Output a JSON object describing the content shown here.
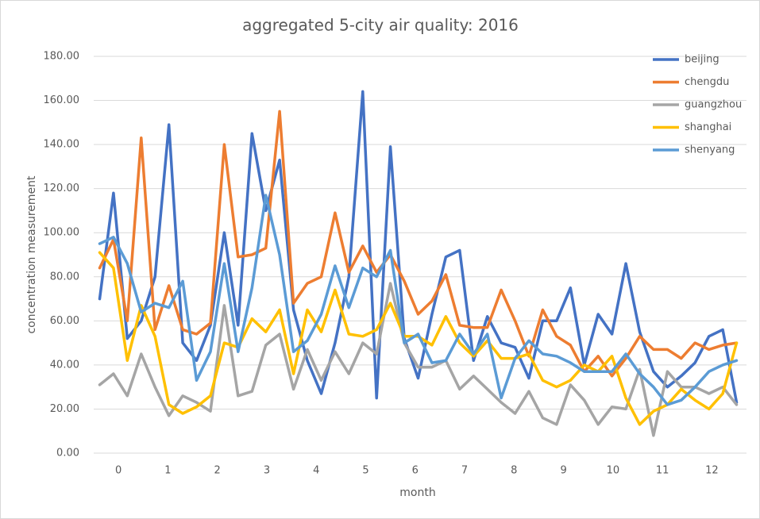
{
  "chart_data": {
    "type": "line",
    "title": "aggregated 5-city air quality: 2016",
    "xlabel": "month",
    "ylabel": "concentration measurement",
    "x": [
      -0.38,
      -0.1,
      0.18,
      0.46,
      0.74,
      1.02,
      1.3,
      1.58,
      1.86,
      2.14,
      2.42,
      2.7,
      2.98,
      3.26,
      3.54,
      3.82,
      4.1,
      4.38,
      4.66,
      4.94,
      5.22,
      5.5,
      5.78,
      6.06,
      6.34,
      6.62,
      6.9,
      7.18,
      7.46,
      7.74,
      8.02,
      8.3,
      8.58,
      8.86,
      9.14,
      9.42,
      9.7,
      9.98,
      10.26,
      10.54,
      10.82,
      11.1,
      11.38,
      11.66,
      11.94,
      12.22,
      12.5
    ],
    "series": [
      {
        "name": "beijing",
        "color": "#4472c4",
        "values": [
          70,
          118,
          52,
          60,
          80,
          149,
          50,
          42,
          58,
          100,
          58,
          145,
          110,
          133,
          65,
          42,
          27,
          50,
          80,
          164,
          25,
          139,
          52,
          34,
          63,
          89,
          92,
          42,
          62,
          50,
          48,
          34,
          60,
          60,
          75,
          40,
          63,
          54,
          86,
          55,
          37,
          30,
          35,
          41,
          53,
          56,
          23
        ]
      },
      {
        "name": "chengdu",
        "color": "#ed7d31",
        "values": [
          84,
          97,
          60,
          143,
          56,
          76,
          56,
          54,
          59,
          140,
          89,
          90,
          93,
          155,
          68,
          77,
          80,
          109,
          82,
          94,
          82,
          90,
          78,
          63,
          69,
          81,
          58,
          57,
          57,
          74,
          60,
          44,
          65,
          53,
          49,
          37,
          44,
          35,
          43,
          53,
          47,
          47,
          43,
          50,
          47,
          49,
          50
        ]
      },
      {
        "name": "guangzhou",
        "color": "#a5a5a5",
        "values": [
          31,
          36,
          26,
          45,
          30,
          17,
          26,
          23,
          19,
          67,
          26,
          28,
          49,
          54,
          29,
          47,
          33,
          46,
          36,
          50,
          45,
          77,
          50,
          39,
          39,
          42,
          29,
          35,
          29,
          23,
          18,
          28,
          16,
          13,
          31,
          24,
          13,
          21,
          20,
          38,
          8,
          37,
          30,
          30,
          27,
          30,
          22
        ]
      },
      {
        "name": "shanghai",
        "color": "#ffc000",
        "values": [
          91,
          84,
          42,
          67,
          53,
          22,
          18,
          21,
          26,
          50,
          48,
          61,
          55,
          65,
          36,
          65,
          55,
          74,
          54,
          53,
          56,
          68,
          53,
          53,
          49,
          62,
          50,
          44,
          51,
          43,
          43,
          45,
          33,
          30,
          33,
          40,
          37,
          44,
          25,
          13,
          19,
          22,
          29,
          24,
          20,
          27,
          50
        ]
      },
      {
        "name": "shenyang",
        "color": "#5b9bd5",
        "values": [
          95,
          98,
          86,
          64,
          68,
          66,
          78,
          33,
          46,
          86,
          46,
          75,
          117,
          90,
          46,
          51,
          63,
          85,
          66,
          84,
          80,
          92,
          50,
          54,
          41,
          42,
          54,
          45,
          54,
          25,
          43,
          51,
          45,
          44,
          41,
          37,
          37,
          37,
          45,
          36,
          30,
          22,
          24,
          30,
          37,
          40,
          42
        ]
      }
    ],
    "xlim": [
      -0.5,
      12.7
    ],
    "xticks": [
      0,
      1,
      2,
      3,
      4,
      5,
      6,
      7,
      8,
      9,
      10,
      11,
      12
    ],
    "ylim": [
      0,
      180
    ],
    "yticks": [
      {
        "value": 0,
        "label": "0.00"
      },
      {
        "value": 20,
        "label": "20.00"
      },
      {
        "value": 40,
        "label": "40.00"
      },
      {
        "value": 60,
        "label": "60.00"
      },
      {
        "value": 80,
        "label": "80.00"
      },
      {
        "value": 100,
        "label": "100.00"
      },
      {
        "value": 120,
        "label": "120.00"
      },
      {
        "value": 140,
        "label": "140.00"
      },
      {
        "value": 160,
        "label": "160.00"
      },
      {
        "value": 180,
        "label": "180.00"
      }
    ],
    "grid": true,
    "legend": "top-right"
  }
}
